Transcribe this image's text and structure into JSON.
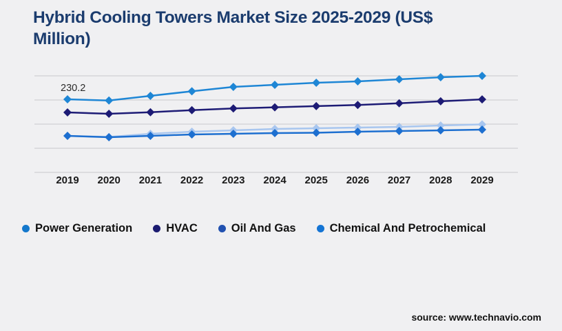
{
  "title": "Hybrid Cooling Towers Market Size 2025-2029 (US$ Million)",
  "footer": {
    "source": "source: www.technavio.com"
  },
  "colors": {
    "background": "#f0f0f2",
    "title": "#1b3c6e",
    "gridline": "#c9c9cc",
    "axis_label": "#1a1a1a",
    "point_label": "#2b2b2b"
  },
  "chart_data": {
    "type": "line",
    "title": "Hybrid Cooling Towers Market Size 2025-2029 (US$ Million)",
    "xlabel": "",
    "ylabel": "US$ Million",
    "categories": [
      "2019",
      "2020",
      "2021",
      "2022",
      "2023",
      "2024",
      "2025",
      "2026",
      "2027",
      "2028",
      "2029"
    ],
    "ylim": [
      0,
      304.1
    ],
    "grid": true,
    "gridline_count": 5,
    "legend_position": "bottom",
    "marker": "diamond",
    "point_label": {
      "series": "Power Generation",
      "category": "2019",
      "text": "230.2"
    },
    "series": [
      {
        "name": "Power Generation",
        "line_color": "#1e86d5",
        "legend_color": "#1478cc",
        "values": [
          230.2,
          226.4,
          241.1,
          255.6,
          269.3,
          275.8,
          282.3,
          286.7,
          293.2,
          299.7,
          304.1
        ]
      },
      {
        "name": "HVAC",
        "line_color": "#1d1b75",
        "legend_color": "#1b1b70",
        "values": [
          189.0,
          184.6,
          189.5,
          196.1,
          201.4,
          205.0,
          208.7,
          212.4,
          217.8,
          224.1,
          230.0
        ]
      },
      {
        "name": "Oil And Gas",
        "line_color": "#a8c6ef",
        "legend_color": "#2151b0",
        "values": [
          115.1,
          111.5,
          121.6,
          128.2,
          132.5,
          136.8,
          138.9,
          141.2,
          143.4,
          147.7,
          151.2
        ]
      },
      {
        "name": "Chemical And Petrochemical",
        "line_color": "#1d6fd0",
        "legend_color": "#1474d4",
        "values": [
          115.1,
          110.8,
          115.1,
          119.4,
          121.6,
          123.8,
          124.9,
          128.2,
          130.3,
          132.5,
          134.6
        ]
      }
    ]
  }
}
